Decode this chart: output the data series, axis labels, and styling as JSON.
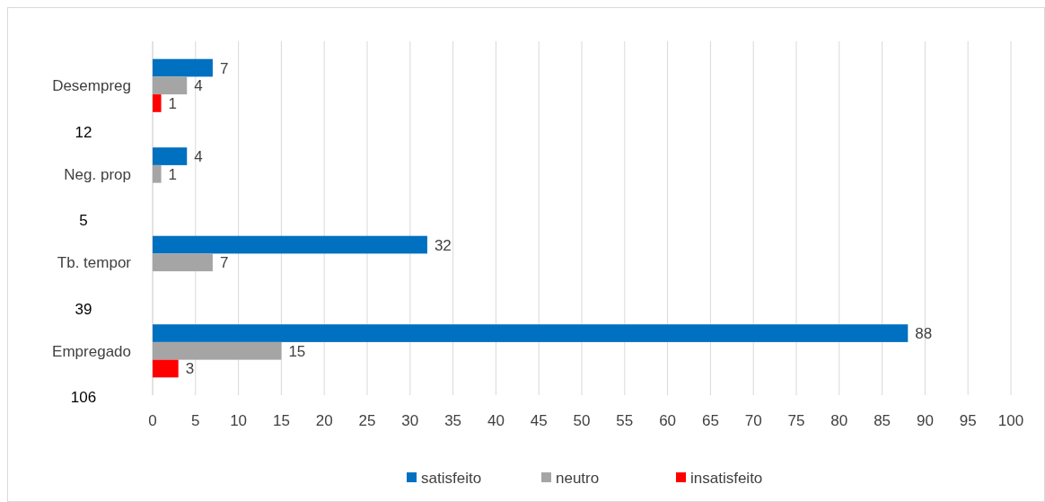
{
  "chart_data": {
    "type": "bar",
    "orientation": "horizontal",
    "categories": [
      "Desempreg",
      "Neg. prop",
      "Tb. tempor",
      "Empregado"
    ],
    "series": [
      {
        "name": "satisfeito",
        "color": "#0070c0",
        "values": [
          7,
          4,
          32,
          88
        ]
      },
      {
        "name": "neutro",
        "color": "#a5a5a5",
        "values": [
          4,
          1,
          7,
          15
        ]
      },
      {
        "name": "insatisfeito",
        "color": "#ff0000",
        "values": [
          1,
          null,
          null,
          3
        ]
      }
    ],
    "annotations": [
      "12",
      "5",
      "39",
      "106"
    ],
    "xlim": [
      0,
      100
    ],
    "xticks": [
      0,
      5,
      10,
      15,
      20,
      25,
      30,
      35,
      40,
      45,
      50,
      55,
      60,
      65,
      70,
      75,
      80,
      85,
      90,
      95,
      100
    ],
    "grid": "x",
    "legend": "bottom",
    "data_labels": true
  }
}
